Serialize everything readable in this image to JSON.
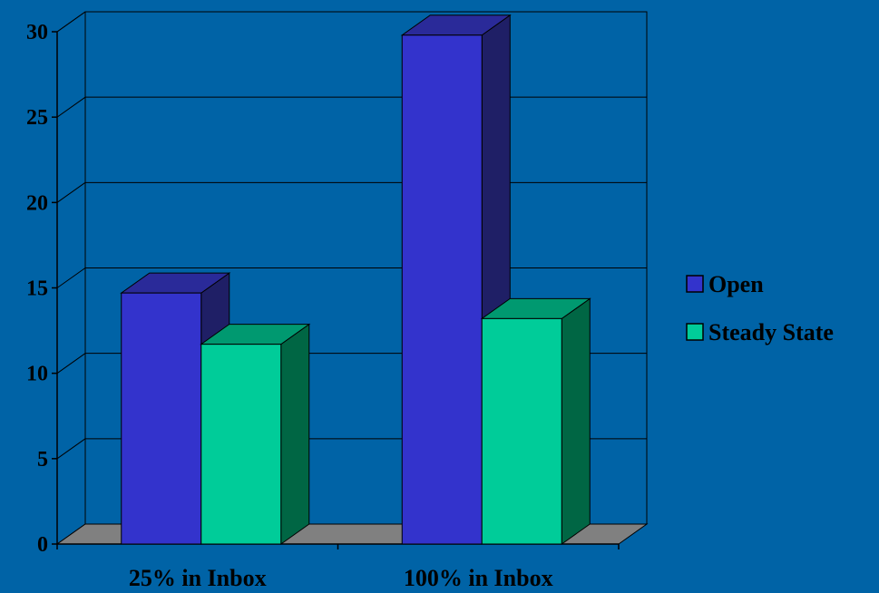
{
  "colors": {
    "background": "#0063a6",
    "floor": "#808080",
    "open_front": "#3333cc",
    "open_side": "#1f1f66",
    "open_top": "#2a2a99",
    "steady_front": "#00cc99",
    "steady_side": "#006644",
    "steady_top": "#009970",
    "axis": "#000000",
    "grid": "#000000"
  },
  "chart_data": {
    "type": "bar",
    "categories": [
      "25% in Inbox",
      "100% in Inbox"
    ],
    "series": [
      {
        "name": "Open",
        "values": [
          14.7,
          29.8
        ]
      },
      {
        "name": "Steady State",
        "values": [
          11.7,
          13.2
        ]
      }
    ],
    "ylim": [
      0,
      30
    ],
    "yticks": [
      "0",
      "5",
      "10",
      "15",
      "20",
      "25",
      "30"
    ],
    "grid": true,
    "legend": "right",
    "style": "3d-bar"
  },
  "legend": {
    "items": [
      {
        "label": "Open",
        "color": "#3333cc"
      },
      {
        "label": "Steady State",
        "color": "#00cc99"
      }
    ]
  }
}
